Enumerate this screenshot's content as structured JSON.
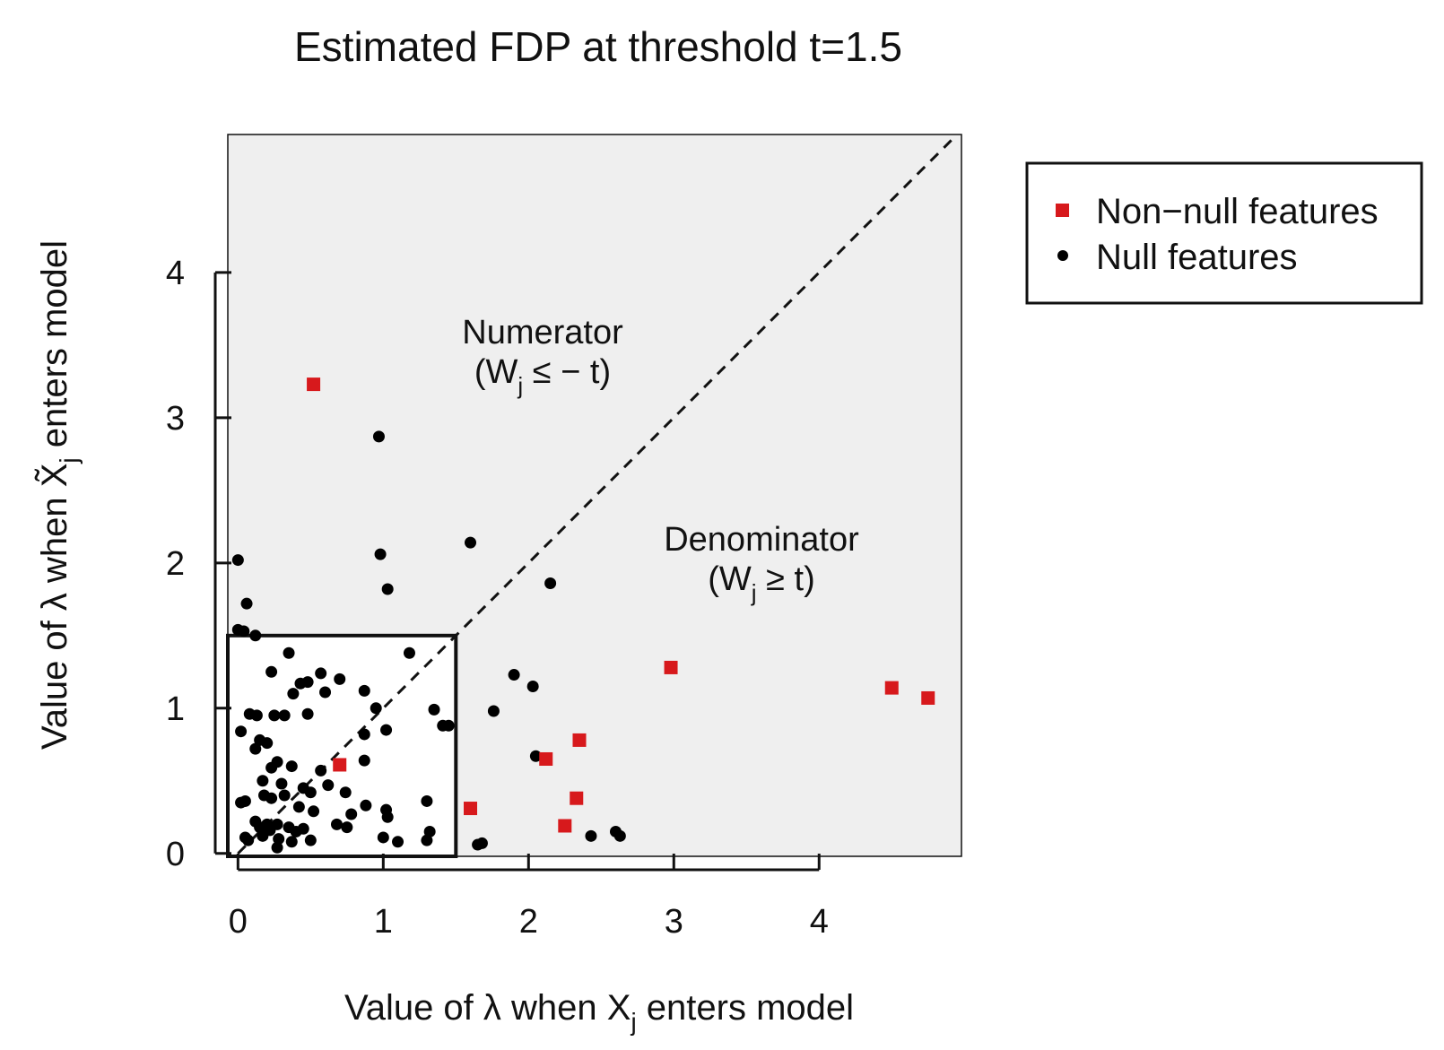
{
  "chart_data": {
    "type": "scatter",
    "title": "Estimated FDP at threshold t=1.5",
    "xlabel": {
      "prefix": "Value of ",
      "lambda": "λ",
      "middle": " when X",
      "sub": "j",
      "suffix": " enters model"
    },
    "ylabel": {
      "prefix": "Value of ",
      "lambda": "λ",
      "middle": " when X̃",
      "sub": "j",
      "suffix": " enters model"
    },
    "xlim": [
      -0.07,
      4.98
    ],
    "ylim": [
      -0.02,
      4.95
    ],
    "xticks": [
      "0",
      "1",
      "2",
      "3",
      "4"
    ],
    "yticks": [
      "0",
      "1",
      "2",
      "3",
      "4"
    ],
    "threshold": 1.5,
    "annotations": {
      "numerator": {
        "line1": "Numerator",
        "line2_open": "(W",
        "line2_sub": "j",
        "line2_rest": " ≤ − t)"
      },
      "denominator": {
        "line1": "Denominator",
        "line2_open": "(W",
        "line2_sub": "j",
        "line2_rest": " ≥ t)"
      }
    },
    "legend": {
      "position": "right",
      "entries": [
        {
          "label": "Non−null features",
          "marker": "square",
          "color": "#d7191c"
        },
        {
          "label": "Null features",
          "marker": "circle",
          "color": "#000000"
        }
      ]
    },
    "colors": {
      "panel": "#efefef",
      "nonnull": "#d7191c",
      "null": "#000000"
    },
    "series": [
      {
        "name": "Non−null features",
        "points": [
          [
            0.52,
            3.23
          ],
          [
            0.7,
            0.61
          ],
          [
            1.6,
            0.31
          ],
          [
            2.12,
            0.65
          ],
          [
            2.25,
            0.19
          ],
          [
            2.33,
            0.38
          ],
          [
            2.35,
            0.78
          ],
          [
            2.98,
            1.28
          ],
          [
            4.5,
            1.14
          ],
          [
            4.75,
            1.07
          ]
        ]
      },
      {
        "name": "Null features",
        "points": [
          [
            0.97,
            2.87
          ],
          [
            1.6,
            2.14
          ],
          [
            0.98,
            2.06
          ],
          [
            0.0,
            2.02
          ],
          [
            2.15,
            1.86
          ],
          [
            1.03,
            1.82
          ],
          [
            0.06,
            1.72
          ],
          [
            0.0,
            1.54
          ],
          [
            0.04,
            1.53
          ],
          [
            0.12,
            1.5
          ],
          [
            1.9,
            1.23
          ],
          [
            2.03,
            1.15
          ],
          [
            1.76,
            0.98
          ],
          [
            2.05,
            0.67
          ],
          [
            1.65,
            0.06
          ],
          [
            1.68,
            0.07
          ],
          [
            2.43,
            0.12
          ],
          [
            2.6,
            0.15
          ],
          [
            2.63,
            0.12
          ],
          [
            0.35,
            1.38
          ],
          [
            0.23,
            1.25
          ],
          [
            1.18,
            1.38
          ],
          [
            0.57,
            1.24
          ],
          [
            0.7,
            1.2
          ],
          [
            0.43,
            1.17
          ],
          [
            0.48,
            1.18
          ],
          [
            0.38,
            1.1
          ],
          [
            0.6,
            1.11
          ],
          [
            0.87,
            1.12
          ],
          [
            0.48,
            0.96
          ],
          [
            0.25,
            0.95
          ],
          [
            0.32,
            0.95
          ],
          [
            0.08,
            0.96
          ],
          [
            0.13,
            0.95
          ],
          [
            0.95,
            1.0
          ],
          [
            1.35,
            0.99
          ],
          [
            1.41,
            0.88
          ],
          [
            1.45,
            0.88
          ],
          [
            0.87,
            0.82
          ],
          [
            1.02,
            0.85
          ],
          [
            0.02,
            0.84
          ],
          [
            0.15,
            0.78
          ],
          [
            0.2,
            0.76
          ],
          [
            0.12,
            0.72
          ],
          [
            0.37,
            0.6
          ],
          [
            0.23,
            0.59
          ],
          [
            0.27,
            0.63
          ],
          [
            0.87,
            0.64
          ],
          [
            0.57,
            0.57
          ],
          [
            0.17,
            0.5
          ],
          [
            0.3,
            0.48
          ],
          [
            0.45,
            0.45
          ],
          [
            0.62,
            0.47
          ],
          [
            0.5,
            0.42
          ],
          [
            0.74,
            0.42
          ],
          [
            0.05,
            0.36
          ],
          [
            0.02,
            0.35
          ],
          [
            0.18,
            0.4
          ],
          [
            0.23,
            0.38
          ],
          [
            0.32,
            0.4
          ],
          [
            1.3,
            0.36
          ],
          [
            0.42,
            0.32
          ],
          [
            0.52,
            0.29
          ],
          [
            0.88,
            0.33
          ],
          [
            1.02,
            0.3
          ],
          [
            1.03,
            0.25
          ],
          [
            0.78,
            0.27
          ],
          [
            0.12,
            0.22
          ],
          [
            0.15,
            0.18
          ],
          [
            0.2,
            0.2
          ],
          [
            0.22,
            0.16
          ],
          [
            0.27,
            0.2
          ],
          [
            0.35,
            0.18
          ],
          [
            0.4,
            0.15
          ],
          [
            0.45,
            0.17
          ],
          [
            0.68,
            0.2
          ],
          [
            0.75,
            0.18
          ],
          [
            1.32,
            0.15
          ],
          [
            0.05,
            0.11
          ],
          [
            0.07,
            0.09
          ],
          [
            0.17,
            0.12
          ],
          [
            0.28,
            0.1
          ],
          [
            0.37,
            0.08
          ],
          [
            0.5,
            0.09
          ],
          [
            1.0,
            0.11
          ],
          [
            1.1,
            0.08
          ],
          [
            1.3,
            0.09
          ],
          [
            0.27,
            0.04
          ]
        ]
      }
    ]
  }
}
